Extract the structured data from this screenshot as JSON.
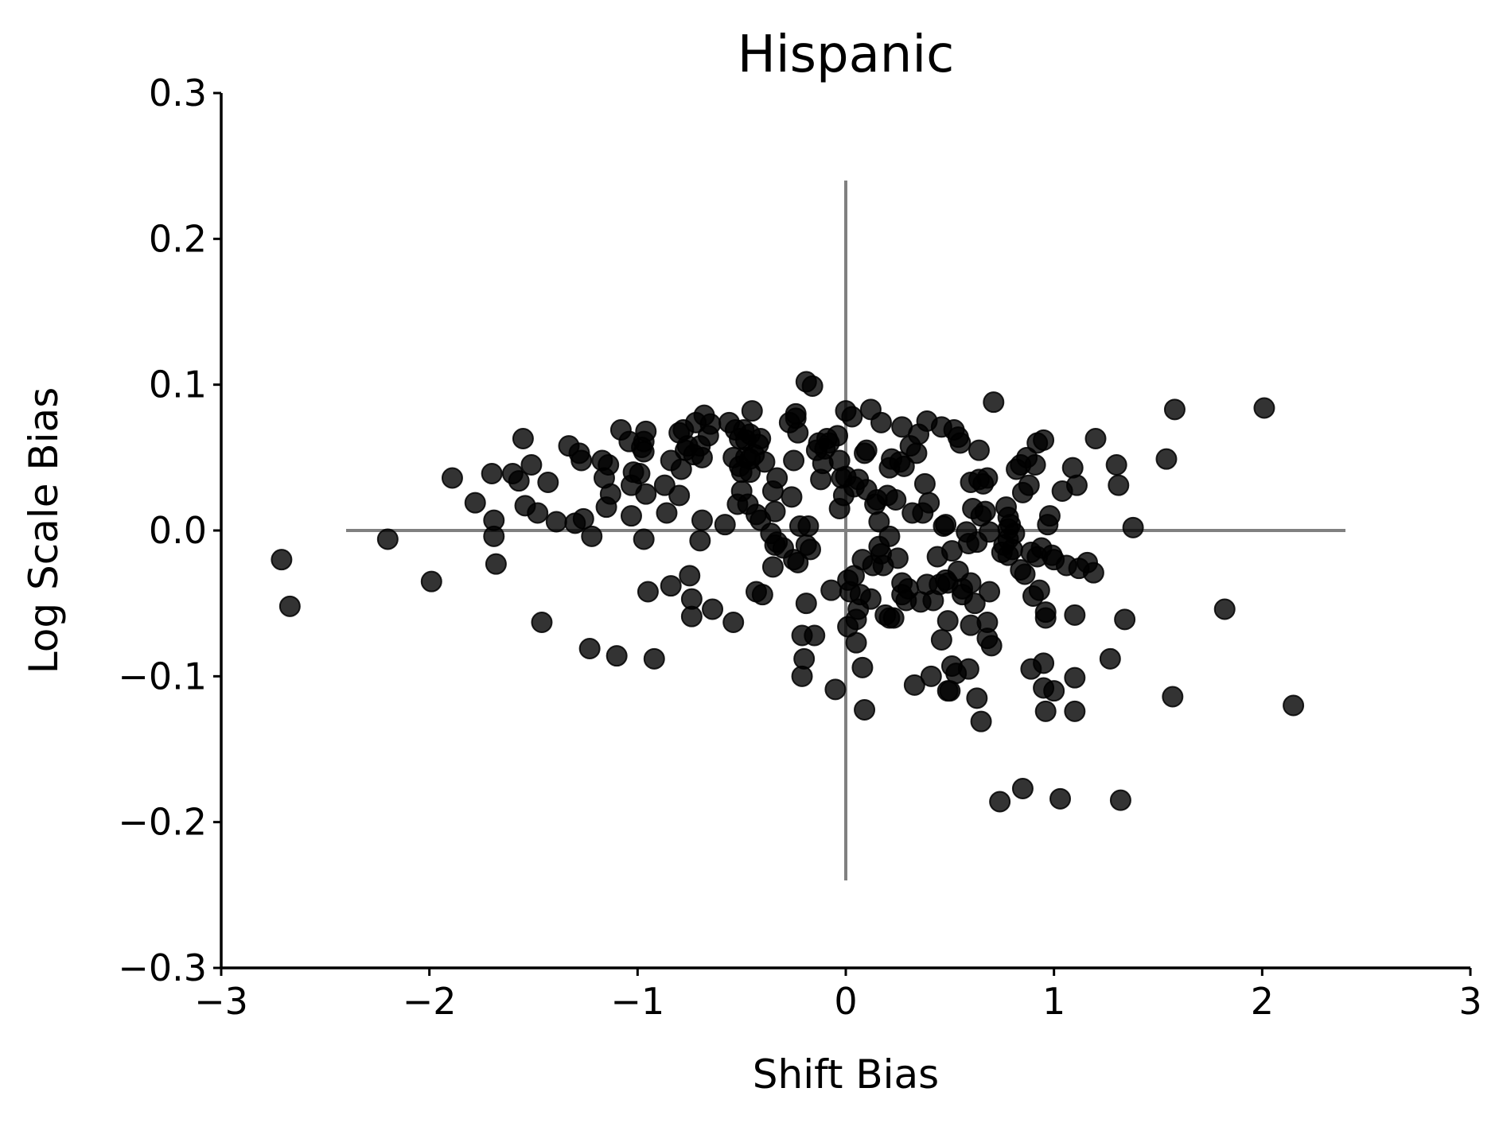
{
  "chart_data": {
    "type": "scatter",
    "title": "Hispanic",
    "xlabel": "Shift Bias",
    "ylabel": "Log Scale Bias",
    "xlim": [
      -3,
      3
    ],
    "ylim": [
      -0.3,
      0.3
    ],
    "xticks": [
      "−3",
      "−2",
      "−1",
      "0",
      "1",
      "2",
      "3"
    ],
    "yticks": [
      "0.3",
      "0.2",
      "0.1",
      "0.0",
      "−0.1",
      "−0.2",
      "−0.3"
    ],
    "grid": false,
    "reference_lines": {
      "horizontal": {
        "y": 0,
        "x_range": [
          -2.4,
          2.4
        ]
      },
      "vertical": {
        "x": 0,
        "y_range": [
          -0.24,
          0.24
        ]
      }
    },
    "colors": {
      "points": "#000000",
      "reference": "#808080",
      "axis": "#000000"
    },
    "points": [
      [
        -2.71,
        -0.02
      ],
      [
        -2.67,
        -0.052
      ],
      [
        -2.2,
        -0.006
      ],
      [
        -1.99,
        -0.035
      ],
      [
        -1.89,
        0.036
      ],
      [
        -1.78,
        0.019
      ],
      [
        -1.7,
        0.039
      ],
      [
        -1.69,
        0.007
      ],
      [
        -1.69,
        -0.004
      ],
      [
        -1.68,
        -0.023
      ],
      [
        -1.6,
        0.039
      ],
      [
        -1.57,
        0.034
      ],
      [
        -1.55,
        0.063
      ],
      [
        -1.54,
        0.017
      ],
      [
        -1.51,
        0.045
      ],
      [
        -1.48,
        0.012
      ],
      [
        -1.46,
        -0.063
      ],
      [
        -1.43,
        0.033
      ],
      [
        -1.39,
        0.006
      ],
      [
        -1.33,
        0.058
      ],
      [
        -1.3,
        0.005
      ],
      [
        -1.28,
        0.053
      ],
      [
        -1.27,
        0.048
      ],
      [
        -1.26,
        0.008
      ],
      [
        -1.23,
        -0.081
      ],
      [
        -1.22,
        -0.004
      ],
      [
        -1.17,
        0.048
      ],
      [
        -1.16,
        0.036
      ],
      [
        -1.15,
        0.016
      ],
      [
        -1.14,
        0.045
      ],
      [
        -1.13,
        0.025
      ],
      [
        -1.1,
        -0.086
      ],
      [
        -1.08,
        0.069
      ],
      [
        -1.04,
        0.061
      ],
      [
        -1.03,
        0.031
      ],
      [
        -1.03,
        0.01
      ],
      [
        -1.02,
        0.04
      ],
      [
        -0.99,
        0.039
      ],
      [
        -0.98,
        0.057
      ],
      [
        -0.97,
        0.061
      ],
      [
        -0.97,
        0.054
      ],
      [
        -0.97,
        -0.006
      ],
      [
        -0.96,
        0.068
      ],
      [
        -0.96,
        0.025
      ],
      [
        -0.95,
        -0.042
      ],
      [
        -0.92,
        -0.088
      ],
      [
        -0.87,
        0.031
      ],
      [
        -0.86,
        0.012
      ],
      [
        -0.84,
        0.048
      ],
      [
        -0.84,
        -0.038
      ],
      [
        -0.8,
        0.024
      ],
      [
        -0.8,
        0.067
      ],
      [
        -0.79,
        0.042
      ],
      [
        -0.78,
        0.069
      ],
      [
        -0.77,
        0.055
      ],
      [
        -0.76,
        0.058
      ],
      [
        -0.75,
        -0.031
      ],
      [
        -0.74,
        -0.047
      ],
      [
        -0.74,
        -0.059
      ],
      [
        -0.73,
        0.052
      ],
      [
        -0.72,
        0.074
      ],
      [
        -0.7,
        0.058
      ],
      [
        -0.7,
        -0.007
      ],
      [
        -0.69,
        0.007
      ],
      [
        -0.69,
        0.05
      ],
      [
        -0.68,
        0.079
      ],
      [
        -0.66,
        0.065
      ],
      [
        -0.65,
        0.073
      ],
      [
        -0.64,
        -0.054
      ],
      [
        -0.58,
        0.004
      ],
      [
        -0.56,
        0.074
      ],
      [
        -0.54,
        -0.063
      ],
      [
        -0.54,
        0.05
      ],
      [
        -0.53,
        0.069
      ],
      [
        -0.52,
        0.018
      ],
      [
        -0.51,
        0.044
      ],
      [
        -0.51,
        0.063
      ],
      [
        -0.5,
        0.04
      ],
      [
        -0.5,
        0.027
      ],
      [
        -0.49,
        0.069
      ],
      [
        -0.48,
        0.05
      ],
      [
        -0.48,
        0.062
      ],
      [
        -0.47,
        0.018
      ],
      [
        -0.46,
        0.049
      ],
      [
        -0.46,
        0.04
      ],
      [
        -0.46,
        0.066
      ],
      [
        -0.45,
        0.082
      ],
      [
        -0.44,
        0.052
      ],
      [
        -0.43,
        0.011
      ],
      [
        -0.43,
        -0.042
      ],
      [
        -0.42,
        0.059
      ],
      [
        -0.41,
        0.063
      ],
      [
        -0.41,
        0.007
      ],
      [
        -0.4,
        -0.044
      ],
      [
        -0.39,
        0.047
      ],
      [
        -0.36,
        -0.002
      ],
      [
        -0.35,
        0.027
      ],
      [
        -0.35,
        -0.025
      ],
      [
        -0.34,
        0.013
      ],
      [
        -0.34,
        -0.01
      ],
      [
        -0.33,
        0.036
      ],
      [
        -0.33,
        -0.008
      ],
      [
        -0.3,
        -0.012
      ],
      [
        -0.27,
        0.074
      ],
      [
        -0.26,
        0.023
      ],
      [
        -0.25,
        0.048
      ],
      [
        -0.25,
        -0.02
      ],
      [
        -0.24,
        0.08
      ],
      [
        -0.24,
        0.077
      ],
      [
        -0.23,
        0.067
      ],
      [
        -0.23,
        -0.022
      ],
      [
        -0.22,
        0.003
      ],
      [
        -0.21,
        -0.072
      ],
      [
        -0.21,
        -0.1
      ],
      [
        -0.2,
        -0.088
      ],
      [
        -0.19,
        -0.01
      ],
      [
        -0.19,
        -0.05
      ],
      [
        -0.19,
        0.102
      ],
      [
        -0.18,
        0.003
      ],
      [
        -0.17,
        -0.013
      ],
      [
        -0.16,
        0.099
      ],
      [
        -0.15,
        -0.072
      ],
      [
        -0.14,
        0.055
      ],
      [
        -0.13,
        0.06
      ],
      [
        -0.12,
        0.035
      ],
      [
        -0.11,
        0.046
      ],
      [
        -0.1,
        0.056
      ],
      [
        -0.09,
        0.063
      ],
      [
        -0.08,
        0.06
      ],
      [
        -0.07,
        -0.041
      ],
      [
        -0.05,
        -0.109
      ],
      [
        -0.04,
        0.065
      ],
      [
        -0.03,
        0.048
      ],
      [
        -0.03,
        0.015
      ],
      [
        -0.02,
        0.036
      ],
      [
        -0.01,
        0.024
      ],
      [
        0.0,
        0.082
      ],
      [
        0.0,
        0.037
      ],
      [
        0.01,
        -0.034
      ],
      [
        0.01,
        -0.066
      ],
      [
        0.02,
        -0.042
      ],
      [
        0.03,
        0.078
      ],
      [
        0.04,
        0.03
      ],
      [
        0.04,
        -0.031
      ],
      [
        0.05,
        -0.061
      ],
      [
        0.05,
        -0.077
      ],
      [
        0.06,
        0.035
      ],
      [
        0.06,
        -0.054
      ],
      [
        0.07,
        -0.044
      ],
      [
        0.08,
        -0.094
      ],
      [
        0.08,
        -0.02
      ],
      [
        0.09,
        -0.123
      ],
      [
        0.09,
        0.053
      ],
      [
        0.1,
        0.028
      ],
      [
        0.1,
        0.055
      ],
      [
        0.12,
        -0.047
      ],
      [
        0.12,
        0.083
      ],
      [
        0.13,
        -0.024
      ],
      [
        0.14,
        0.018
      ],
      [
        0.15,
        0.021
      ],
      [
        0.16,
        0.006
      ],
      [
        0.16,
        -0.011
      ],
      [
        0.17,
        -0.016
      ],
      [
        0.17,
        0.074
      ],
      [
        0.18,
        -0.024
      ],
      [
        0.19,
        -0.058
      ],
      [
        0.2,
        0.024
      ],
      [
        0.21,
        -0.004
      ],
      [
        0.21,
        0.043
      ],
      [
        0.21,
        -0.06
      ],
      [
        0.22,
        0.049
      ],
      [
        0.23,
        -0.06
      ],
      [
        0.24,
        0.021
      ],
      [
        0.25,
        -0.019
      ],
      [
        0.26,
        0.047
      ],
      [
        0.27,
        -0.044
      ],
      [
        0.27,
        -0.036
      ],
      [
        0.27,
        0.071
      ],
      [
        0.28,
        0.044
      ],
      [
        0.29,
        -0.048
      ],
      [
        0.3,
        -0.04
      ],
      [
        0.31,
        0.058
      ],
      [
        0.32,
        0.012
      ],
      [
        0.33,
        -0.106
      ],
      [
        0.34,
        0.053
      ],
      [
        0.35,
        0.066
      ],
      [
        0.36,
        -0.049
      ],
      [
        0.37,
        0.012
      ],
      [
        0.38,
        0.032
      ],
      [
        0.39,
        0.075
      ],
      [
        0.39,
        -0.037
      ],
      [
        0.4,
        0.019
      ],
      [
        0.41,
        -0.1
      ],
      [
        0.42,
        -0.048
      ],
      [
        0.44,
        -0.018
      ],
      [
        0.45,
        -0.037
      ],
      [
        0.46,
        0.071
      ],
      [
        0.46,
        -0.075
      ],
      [
        0.47,
        0.003
      ],
      [
        0.48,
        -0.034
      ],
      [
        0.48,
        0.004
      ],
      [
        0.49,
        -0.062
      ],
      [
        0.49,
        -0.036
      ],
      [
        0.49,
        -0.11
      ],
      [
        0.5,
        -0.11
      ],
      [
        0.51,
        -0.014
      ],
      [
        0.51,
        -0.093
      ],
      [
        0.52,
        0.069
      ],
      [
        0.53,
        -0.098
      ],
      [
        0.54,
        -0.028
      ],
      [
        0.54,
        0.064
      ],
      [
        0.55,
        0.06
      ],
      [
        0.56,
        -0.04
      ],
      [
        0.56,
        -0.044
      ],
      [
        0.58,
        -0.001
      ],
      [
        0.59,
        -0.009
      ],
      [
        0.59,
        -0.095
      ],
      [
        0.6,
        -0.036
      ],
      [
        0.6,
        0.033
      ],
      [
        0.6,
        -0.065
      ],
      [
        0.61,
        0.015
      ],
      [
        0.62,
        -0.05
      ],
      [
        0.63,
        -0.008
      ],
      [
        0.63,
        -0.115
      ],
      [
        0.64,
        0.055
      ],
      [
        0.64,
        0.035
      ],
      [
        0.65,
        -0.131
      ],
      [
        0.65,
        0.01
      ],
      [
        0.66,
        0.032
      ],
      [
        0.67,
        0.013
      ],
      [
        0.68,
        -0.074
      ],
      [
        0.68,
        -0.063
      ],
      [
        0.68,
        0.036
      ],
      [
        0.69,
        -0.001
      ],
      [
        0.69,
        -0.042
      ],
      [
        0.7,
        -0.079
      ],
      [
        0.71,
        0.088
      ],
      [
        0.74,
        -0.186
      ],
      [
        0.75,
        -0.015
      ],
      [
        0.76,
        -0.01
      ],
      [
        0.77,
        0.016
      ],
      [
        0.78,
        0.001
      ],
      [
        0.78,
        0.009
      ],
      [
        0.78,
        -0.006
      ],
      [
        0.78,
        -0.017
      ],
      [
        0.79,
        0.004
      ],
      [
        0.8,
        -0.013
      ],
      [
        0.81,
        -0.002
      ],
      [
        0.82,
        0.042
      ],
      [
        0.84,
        -0.027
      ],
      [
        0.84,
        0.045
      ],
      [
        0.85,
        -0.177
      ],
      [
        0.85,
        0.026
      ],
      [
        0.86,
        -0.03
      ],
      [
        0.87,
        0.05
      ],
      [
        0.88,
        0.031
      ],
      [
        0.89,
        -0.095
      ],
      [
        0.89,
        -0.015
      ],
      [
        0.9,
        -0.045
      ],
      [
        0.91,
        0.045
      ],
      [
        0.92,
        0.06
      ],
      [
        0.92,
        -0.018
      ],
      [
        0.93,
        -0.041
      ],
      [
        0.94,
        -0.012
      ],
      [
        0.95,
        0.062
      ],
      [
        0.95,
        -0.091
      ],
      [
        0.95,
        -0.108
      ],
      [
        0.96,
        -0.056
      ],
      [
        0.96,
        -0.124
      ],
      [
        0.96,
        -0.06
      ],
      [
        0.97,
        0.004
      ],
      [
        0.98,
        0.01
      ],
      [
        0.99,
        -0.017
      ],
      [
        1.0,
        -0.11
      ],
      [
        1.0,
        -0.02
      ],
      [
        1.03,
        -0.184
      ],
      [
        1.04,
        0.027
      ],
      [
        1.06,
        -0.024
      ],
      [
        1.09,
        0.043
      ],
      [
        1.1,
        -0.101
      ],
      [
        1.1,
        -0.058
      ],
      [
        1.1,
        -0.124
      ],
      [
        1.11,
        0.031
      ],
      [
        1.12,
        -0.026
      ],
      [
        1.16,
        -0.022
      ],
      [
        1.19,
        -0.029
      ],
      [
        1.2,
        0.063
      ],
      [
        1.27,
        -0.088
      ],
      [
        1.3,
        0.045
      ],
      [
        1.31,
        0.031
      ],
      [
        1.32,
        -0.185
      ],
      [
        1.34,
        -0.061
      ],
      [
        1.38,
        0.002
      ],
      [
        1.54,
        0.049
      ],
      [
        1.57,
        -0.114
      ],
      [
        1.58,
        0.083
      ],
      [
        1.82,
        -0.054
      ],
      [
        2.01,
        0.084
      ],
      [
        2.15,
        -0.12
      ]
    ]
  }
}
